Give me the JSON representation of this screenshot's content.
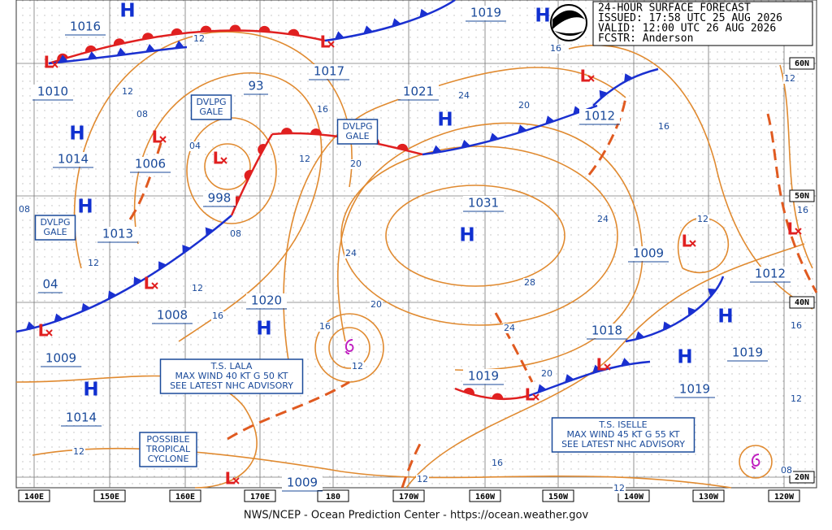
{
  "header": {
    "lines": [
      "24-HOUR SURFACE FORECAST",
      "ISSUED: 17:58 UTC 25 AUG 2026",
      "VALID:  12:00 UTC 26 AUG 2026",
      "FCSTR:  Anderson"
    ]
  },
  "pressures": [
    "1016",
    "1010",
    "1014",
    "1006",
    "998",
    "1013",
    "04",
    "1008",
    "1009",
    "1014",
    "1020",
    "93",
    "1017",
    "1019",
    "1021",
    "1012",
    "1031",
    "1009",
    "1012",
    "1018",
    "1019",
    "1019",
    "1019",
    "1009"
  ],
  "isobar_labels": [
    "12",
    "12",
    "08",
    "04",
    "08",
    "12",
    "08",
    "12",
    "16",
    "16",
    "12",
    "20",
    "24",
    "20",
    "16",
    "12",
    "24",
    "20",
    "16",
    "16",
    "24",
    "28",
    "24",
    "20",
    "12",
    "12",
    "16",
    "16",
    "12",
    "12",
    "16",
    "12",
    "12",
    "08"
  ],
  "highs": [
    "H",
    "H",
    "H",
    "H",
    "H",
    "H",
    "H",
    "H",
    "H",
    "H"
  ],
  "lows": [
    "L",
    "L",
    "L",
    "L",
    "L",
    "L",
    "L",
    "L",
    "L",
    "L",
    "L",
    "L"
  ],
  "boxes": [
    {
      "lines": [
        "DVLPG",
        "GALE"
      ]
    },
    {
      "lines": [
        "DVLPG",
        "GALE"
      ]
    },
    {
      "lines": [
        "DVLPG",
        "GALE"
      ]
    },
    {
      "lines": [
        "T.S. LALA",
        "MAX WIND 40 KT G 50 KT",
        "SEE LATEST NHC ADVISORY"
      ]
    },
    {
      "lines": [
        "T.S. ISELLE",
        "MAX WIND 45 KT G 55 KT",
        "SEE LATEST NHC ADVISORY"
      ]
    },
    {
      "lines": [
        "POSSIBLE",
        "TROPICAL",
        "CYCLONE"
      ]
    }
  ],
  "longitudes": [
    "140E",
    "150E",
    "160E",
    "170E",
    "180",
    "170W",
    "160W",
    "150W",
    "140W",
    "130W",
    "120W"
  ],
  "latitudes": [
    "60N",
    "50N",
    "40N",
    "20N"
  ],
  "footer": "NWS/NCEP - Ocean Prediction Center - https://ocean.weather.gov"
}
